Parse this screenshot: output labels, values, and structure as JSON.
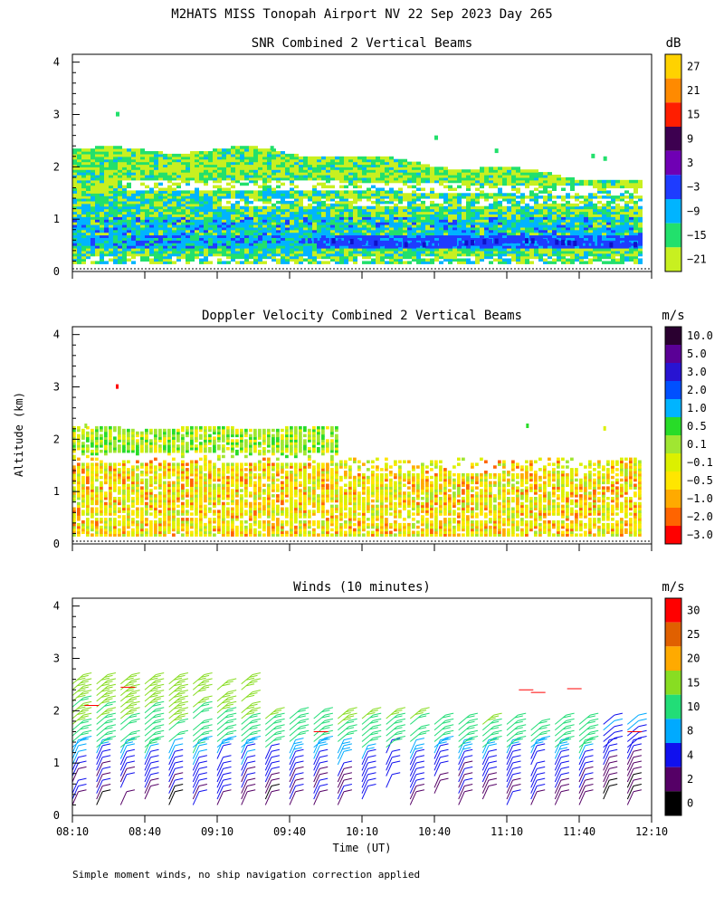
{
  "figure": {
    "title": "M2HATS MISS Tonopah Airport NV  22 Sep 2023 Day 265",
    "ylabel": "Altitude (km)",
    "xlabel": "Time (UT)",
    "footnote": "Simple moment winds, no ship navigation correction applied"
  },
  "chart_data": [
    {
      "type": "heatmap",
      "title": "SNR Combined 2 Vertical Beams",
      "unit": "dB",
      "xlim_minutes_since_0810": [
        0,
        240
      ],
      "ylim_km": [
        0,
        4
      ],
      "y_ticks": [
        "0",
        "1",
        "2",
        "3",
        "4"
      ],
      "colorbar": {
        "labels": [
          "27",
          "21",
          "15",
          "9",
          "3",
          "−3",
          "−9",
          "−15",
          "−21"
        ],
        "colors": [
          "#ffd200",
          "#ff8a00",
          "#ff1e00",
          "#3d0050",
          "#6f00b4",
          "#1e3cff",
          "#00b4ff",
          "#22e06c",
          "#c8f020"
        ]
      },
      "layers": [
        {
          "name": "upper-layer",
          "bottom_km": 1.6,
          "top_km": 2.3,
          "start_min": 0,
          "end_min": 120,
          "value_db": -21
        },
        {
          "name": "mid-layer",
          "bottom_km": 0.9,
          "top_km": 1.6,
          "start_min": 0,
          "end_min": 235,
          "value_db": -15
        },
        {
          "name": "strong-band",
          "bottom_km": 0.45,
          "top_km": 0.65,
          "start_min": 100,
          "end_min": 235,
          "value_db": -3
        }
      ]
    },
    {
      "type": "heatmap",
      "title": "Doppler Velocity Combined 2 Vertical Beams",
      "unit": "m/s",
      "xlim_minutes_since_0810": [
        0,
        240
      ],
      "ylim_km": [
        0,
        4
      ],
      "y_ticks": [
        "0",
        "1",
        "2",
        "3",
        "4"
      ],
      "colorbar": {
        "labels": [
          "10.0",
          "5.0",
          "3.0",
          "2.0",
          "1.0",
          "0.5",
          "0.1",
          "−0.1",
          "−0.5",
          "−1.0",
          "−2.0",
          "−3.0"
        ],
        "colors": [
          "#2a0030",
          "#5a0096",
          "#2814d2",
          "#0050ff",
          "#00b4ff",
          "#28dc28",
          "#a0e632",
          "#dcf000",
          "#ffe600",
          "#ffaa00",
          "#ff6400",
          "#ff0000"
        ]
      },
      "layers": [
        {
          "name": "upper-layer",
          "bottom_km": 1.7,
          "top_km": 2.2,
          "start_min": 5,
          "end_min": 110,
          "value_ms": 0.3
        },
        {
          "name": "lower-layer",
          "bottom_km": 0.15,
          "top_km": 1.6,
          "start_min": 0,
          "end_min": 235,
          "value_ms": -0.3
        }
      ]
    },
    {
      "type": "wind-barbs",
      "title": "Winds (10 minutes)",
      "unit": "m/s",
      "xlim_minutes_since_0810": [
        0,
        240
      ],
      "ylim_km": [
        0,
        4
      ],
      "y_ticks": [
        "0",
        "1",
        "2",
        "3",
        "4"
      ],
      "x_tick_labels": [
        "08:10",
        "08:40",
        "09:10",
        "09:40",
        "10:10",
        "10:40",
        "11:10",
        "11:40",
        "12:10"
      ],
      "colorbar": {
        "labels": [
          "30",
          "25",
          "20",
          "15",
          "10",
          "8",
          "4",
          "2",
          "0"
        ],
        "colors": [
          "#ff0000",
          "#e06000",
          "#ffaa00",
          "#88dd22",
          "#22dd77",
          "#00aaff",
          "#1010ee",
          "#550066",
          "#000000"
        ]
      },
      "profile_minutes": [
        0,
        10,
        20,
        30,
        40,
        50,
        60,
        70,
        80,
        90,
        100,
        110,
        120,
        130,
        140,
        150,
        160,
        170,
        180,
        190,
        200,
        210,
        220,
        230
      ],
      "speed_by_height_ms": [
        {
          "alt_km": 0.25,
          "speed": 3
        },
        {
          "alt_km": 0.55,
          "speed": 4
        },
        {
          "alt_km": 0.85,
          "speed": 6
        },
        {
          "alt_km": 1.15,
          "speed": 9
        },
        {
          "alt_km": 1.45,
          "speed": 12
        },
        {
          "alt_km": 1.75,
          "speed": 14
        },
        {
          "alt_km": 2.05,
          "speed": 16
        },
        {
          "alt_km": 2.35,
          "speed": 18
        }
      ]
    }
  ]
}
